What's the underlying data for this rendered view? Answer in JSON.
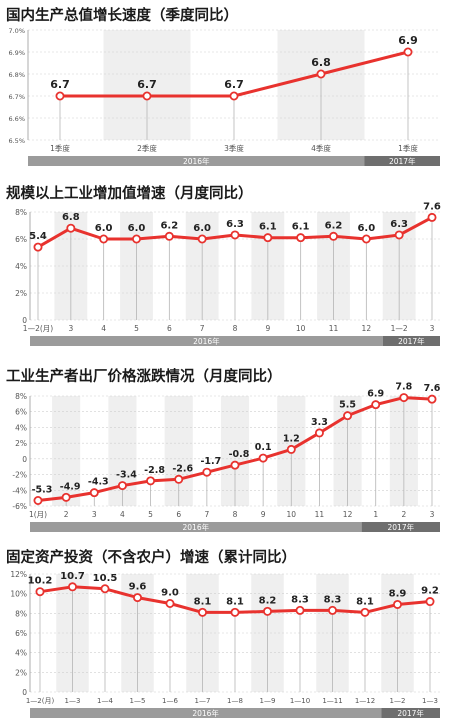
{
  "colors": {
    "line": "#e8322e",
    "marker_fill": "#ffffff",
    "shade": "#efefef",
    "year_bar": "#9b9b9b",
    "year_bar_dark": "#6e6e6e",
    "grid": "#cfcfcf",
    "axis_text": "#555555",
    "value_text": "#222222"
  },
  "chart_data": [
    {
      "type": "line",
      "title": "国内生产总值增长速度（季度同比）",
      "categories": [
        "1季度",
        "2季度",
        "3季度",
        "4季度",
        "1季度"
      ],
      "values": [
        6.7,
        6.7,
        6.7,
        6.8,
        6.9
      ],
      "value_labels": [
        "6.7",
        "6.7",
        "6.7",
        "6.8",
        "6.9"
      ],
      "ylim": [
        6.5,
        7.0
      ],
      "yticks": [
        6.5,
        6.6,
        6.7,
        6.8,
        6.9,
        7.0
      ],
      "ytick_labels": [
        "6.5%",
        "6.6%",
        "6.7%",
        "6.8%",
        "6.9%",
        "7.0%"
      ],
      "groups": [
        {
          "label": "2016年",
          "start": 0,
          "end": 3,
          "dark": false
        },
        {
          "label": "2017年",
          "start": 4,
          "end": 4,
          "dark": true
        }
      ]
    },
    {
      "type": "line",
      "title": "规模以上工业增加值增速（月度同比）",
      "categories": [
        "1—2(月)",
        "3",
        "4",
        "5",
        "6",
        "7",
        "8",
        "9",
        "10",
        "11",
        "12",
        "1—2",
        "3"
      ],
      "values": [
        5.4,
        6.8,
        6.0,
        6.0,
        6.2,
        6.0,
        6.3,
        6.1,
        6.1,
        6.2,
        6.0,
        6.3,
        7.6
      ],
      "value_labels": [
        "5.4",
        "6.8",
        "6.0",
        "6.0",
        "6.2",
        "6.0",
        "6.3",
        "6.1",
        "6.1",
        "6.2",
        "6.0",
        "6.3",
        "7.6"
      ],
      "ylim": [
        0,
        8
      ],
      "yticks": [
        0,
        2,
        4,
        6,
        8
      ],
      "ytick_labels": [
        "0",
        "2%",
        "4%",
        "6%",
        "8%"
      ],
      "groups": [
        {
          "label": "2016年",
          "start": 0,
          "end": 10,
          "dark": false
        },
        {
          "label": "2017年",
          "start": 11,
          "end": 12,
          "dark": true
        }
      ]
    },
    {
      "type": "line",
      "title": "工业生产者出厂价格涨跌情况（月度同比）",
      "categories": [
        "1(月)",
        "2",
        "3",
        "4",
        "5",
        "6",
        "7",
        "8",
        "9",
        "10",
        "11",
        "12",
        "1",
        "2",
        "3"
      ],
      "values": [
        -5.3,
        -4.9,
        -4.3,
        -3.4,
        -2.8,
        -2.6,
        -1.7,
        -0.8,
        0.1,
        1.2,
        3.3,
        5.5,
        6.9,
        7.8,
        7.6
      ],
      "value_labels": [
        "-5.3",
        "-4.9",
        "-4.3",
        "-3.4",
        "-2.8",
        "-2.6",
        "-1.7",
        "-0.8",
        "0.1",
        "1.2",
        "3.3",
        "5.5",
        "6.9",
        "7.8",
        "7.6"
      ],
      "ylim": [
        -6,
        8
      ],
      "yticks": [
        -6,
        -4,
        -2,
        0,
        2,
        4,
        6,
        8
      ],
      "ytick_labels": [
        "-6%",
        "-4%",
        "-2%",
        "0",
        "2%",
        "4%",
        "6%",
        "8%"
      ],
      "groups": [
        {
          "label": "2016年",
          "start": 0,
          "end": 11,
          "dark": false
        },
        {
          "label": "2017年",
          "start": 12,
          "end": 14,
          "dark": true
        }
      ]
    },
    {
      "type": "line",
      "title": "固定资产投资（不含农户）增速（累计同比）",
      "categories": [
        "1—2(月)",
        "1—3",
        "1—4",
        "1—5",
        "1—6",
        "1—7",
        "1—8",
        "1—9",
        "1—10",
        "1—11",
        "1—12",
        "1—2",
        "1—3"
      ],
      "values": [
        10.2,
        10.7,
        10.5,
        9.6,
        9.0,
        8.1,
        8.1,
        8.2,
        8.3,
        8.3,
        8.1,
        8.9,
        9.2
      ],
      "value_labels": [
        "10.2",
        "10.7",
        "10.5",
        "9.6",
        "9.0",
        "8.1",
        "8.1",
        "8.2",
        "8.3",
        "8.3",
        "8.1",
        "8.9",
        "9.2"
      ],
      "ylim": [
        0,
        12
      ],
      "yticks": [
        0,
        2,
        4,
        6,
        8,
        10,
        12
      ],
      "ytick_labels": [
        "0",
        "2%",
        "4%",
        "6%",
        "8%",
        "10%",
        "12%"
      ],
      "groups": [
        {
          "label": "2016年",
          "start": 0,
          "end": 10,
          "dark": false
        },
        {
          "label": "2017年",
          "start": 11,
          "end": 12,
          "dark": true
        }
      ]
    }
  ]
}
